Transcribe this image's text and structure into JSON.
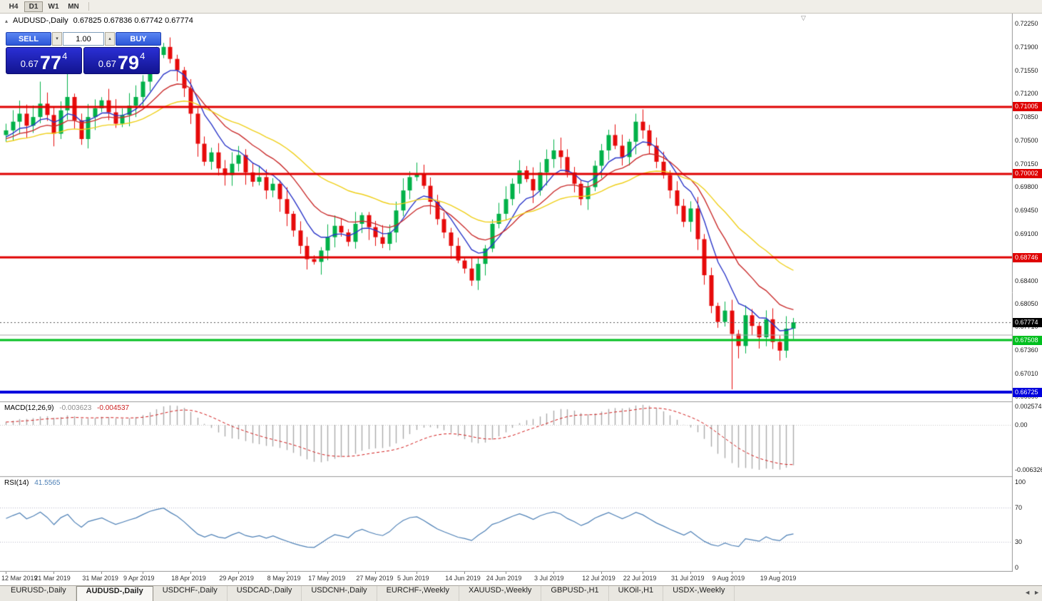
{
  "icons": {
    "collapse": "▴",
    "spin_up": "▴",
    "spin_down": "▾",
    "tab_prev": "◄",
    "tab_next": "►",
    "shift_marker": "▽"
  },
  "colors": {
    "bull": "#00B148",
    "bear": "#E60A0A",
    "macd_hist": "#ABABAB",
    "macd_signal": "#D01818",
    "rsi_line": "#4C7FB5",
    "separator": "#9a9a9a",
    "badge_current": "#000000"
  },
  "toolbar": {
    "timeframes": [
      {
        "label": "H4",
        "active": false
      },
      {
        "label": "D1",
        "active": true
      },
      {
        "label": "W1",
        "active": false
      },
      {
        "label": "MN",
        "active": false
      }
    ]
  },
  "header": {
    "symbol": "AUDUSD-,Daily",
    "ohlc": "0.67825 0.67836 0.67742 0.67774"
  },
  "trade_panel": {
    "sell_label": "SELL",
    "buy_label": "BUY",
    "volume": "1.00",
    "sell_price": {
      "prefix": "0.67",
      "big": "77",
      "sup": "4"
    },
    "buy_price": {
      "prefix": "0.67",
      "big": "79",
      "sup": "4"
    }
  },
  "y_axis": {
    "ticks": [
      "0.72250",
      "0.71900",
      "0.71550",
      "0.71200",
      "0.70850",
      "0.70500",
      "0.70150",
      "0.69800",
      "0.69450",
      "0.69100",
      "0.68750",
      "0.68400",
      "0.68050",
      "0.67710",
      "0.67360",
      "0.67010",
      "0.66660"
    ]
  },
  "x_axis": {
    "dates": [
      {
        "label": "12 Mar 2019",
        "bar": 0
      },
      {
        "label": "21 Mar 2019",
        "bar": 7
      },
      {
        "label": "31 Mar 2019",
        "bar": 14
      },
      {
        "label": "9 Apr 2019",
        "bar": 20
      },
      {
        "label": "18 Apr 2019",
        "bar": 27
      },
      {
        "label": "29 Apr 2019",
        "bar": 34
      },
      {
        "label": "8 May 2019",
        "bar": 41
      },
      {
        "label": "17 May 2019",
        "bar": 47
      },
      {
        "label": "27 May 2019",
        "bar": 54
      },
      {
        "label": "5 Jun 2019",
        "bar": 60
      },
      {
        "label": "14 Jun 2019",
        "bar": 67
      },
      {
        "label": "24 Jun 2019",
        "bar": 73
      },
      {
        "label": "3 Jul 2019",
        "bar": 80
      },
      {
        "label": "12 Jul 2019",
        "bar": 87
      },
      {
        "label": "22 Jul 2019",
        "bar": 93
      },
      {
        "label": "31 Jul 2019",
        "bar": 100
      },
      {
        "label": "9 Aug 2019",
        "bar": 106
      },
      {
        "label": "19 Aug 2019",
        "bar": 113
      }
    ]
  },
  "h_lines": [
    {
      "price": 0.71005,
      "label": "0.71005",
      "color": "#DF0000",
      "width": 3
    },
    {
      "price": 0.70002,
      "label": "0.70002",
      "color": "#DF0000",
      "width": 3
    },
    {
      "price": 0.68746,
      "label": "0.68746",
      "color": "#DF0000",
      "width": 3
    },
    {
      "price": 0.67508,
      "label": "0.67508",
      "color": "#00BF1E",
      "width": 3
    },
    {
      "price": 0.66725,
      "label": "0.66725",
      "color": "#0000DD",
      "width": 4
    },
    {
      "price": 0.6758,
      "label": "",
      "color": "#A8A8A8",
      "width": 1
    }
  ],
  "current_price": {
    "label": "0.67774",
    "price": 0.67774
  },
  "macd_panel": {
    "name": "MACD(12,26,9)",
    "value_main": "-0.003623",
    "value_signal": "-0.004537",
    "axis": [
      {
        "label": "0.002574",
        "v": 0.002574
      },
      {
        "label": "0.00",
        "v": 0
      },
      {
        "label": "-0.006326",
        "v": -0.006326
      }
    ]
  },
  "rsi_panel": {
    "name": "RSI(14)",
    "value": "41.5565",
    "axis": [
      {
        "label": "100",
        "v": 100
      },
      {
        "label": "70",
        "v": 70
      },
      {
        "label": "30",
        "v": 30
      },
      {
        "label": "0",
        "v": 0
      }
    ],
    "levels": [
      70,
      30
    ]
  },
  "tabs": {
    "items": [
      "EURUSD-,Daily",
      "AUDUSD-,Daily",
      "USDCHF-,Daily",
      "USDCAD-,Daily",
      "USDCNH-,Daily",
      "EURCHF-,Weekly",
      "XAUUSD-,Weekly",
      "GBPUSD-,H1",
      "UKOil-,H1",
      "USDX-,Weekly"
    ],
    "active_index": 1
  },
  "chart_data": {
    "type": "candlestick",
    "symbol": "AUDUSD",
    "timeframe": "Daily",
    "title": "AUDUSD-,Daily",
    "ylim": [
      0.6659,
      0.724
    ],
    "macd_ylim": [
      -0.0069,
      0.0031
    ],
    "rsi_ylim": [
      0,
      100
    ],
    "closes_warmup": [
      0.703,
      0.7042,
      0.7055,
      0.704,
      0.7028,
      0.7035,
      0.7048,
      0.706,
      0.7052,
      0.7038,
      0.7045,
      0.7058,
      0.707,
      0.7055,
      0.7042,
      0.705,
      0.7062,
      0.7048,
      0.7036,
      0.7044,
      0.7056,
      0.7068,
      0.7052,
      0.704,
      0.7048,
      0.7058
    ],
    "closes": [
      0.7065,
      0.7078,
      0.709,
      0.7072,
      0.7085,
      0.7105,
      0.7088,
      0.706,
      0.7095,
      0.7115,
      0.708,
      0.7052,
      0.7085,
      0.7098,
      0.711,
      0.7092,
      0.7075,
      0.7088,
      0.7102,
      0.7115,
      0.7138,
      0.7162,
      0.7178,
      0.719,
      0.7172,
      0.7155,
      0.7128,
      0.709,
      0.7045,
      0.7018,
      0.7032,
      0.7008,
      0.6998,
      0.7015,
      0.7028,
      0.7002,
      0.6988,
      0.6995,
      0.6975,
      0.6985,
      0.6962,
      0.694,
      0.6915,
      0.6892,
      0.6872,
      0.6868,
      0.6885,
      0.6905,
      0.6922,
      0.6912,
      0.6898,
      0.6925,
      0.6938,
      0.692,
      0.6905,
      0.6895,
      0.6912,
      0.6945,
      0.6975,
      0.6995,
      0.7,
      0.6982,
      0.6958,
      0.6932,
      0.6912,
      0.6892,
      0.687,
      0.6858,
      0.684,
      0.6865,
      0.6888,
      0.6925,
      0.694,
      0.6962,
      0.6985,
      0.7005,
      0.6992,
      0.6975,
      0.7002,
      0.7022,
      0.7035,
      0.7025,
      0.7002,
      0.6985,
      0.6962,
      0.698,
      0.7012,
      0.7035,
      0.7058,
      0.7042,
      0.7025,
      0.7048,
      0.7078,
      0.7065,
      0.7042,
      0.7018,
      0.6998,
      0.6975,
      0.6952,
      0.6928,
      0.6948,
      0.6902,
      0.6848,
      0.6802,
      0.6778,
      0.6795,
      0.676,
      0.6742,
      0.6788,
      0.6772,
      0.6755,
      0.6782,
      0.6748,
      0.6735,
      0.6768,
      0.67774
    ],
    "wick_overrides": {
      "5": {
        "high": 0.7138
      },
      "9": {
        "high": 0.7152
      },
      "23": {
        "high": 0.7196
      },
      "68": {
        "low": 0.6832
      },
      "92": {
        "high": 0.709
      },
      "106": {
        "low": 0.6677
      }
    },
    "moving_averages": [
      {
        "type": "EMA",
        "period": 7,
        "color": "#2A35C8"
      },
      {
        "type": "EMA",
        "period": 14,
        "color": "#C92B2B"
      },
      {
        "type": "EMA",
        "period": 30,
        "color": "#EFCF19"
      }
    ],
    "indicators": {
      "macd": [
        12,
        26,
        9
      ],
      "rsi": [
        14
      ]
    }
  }
}
